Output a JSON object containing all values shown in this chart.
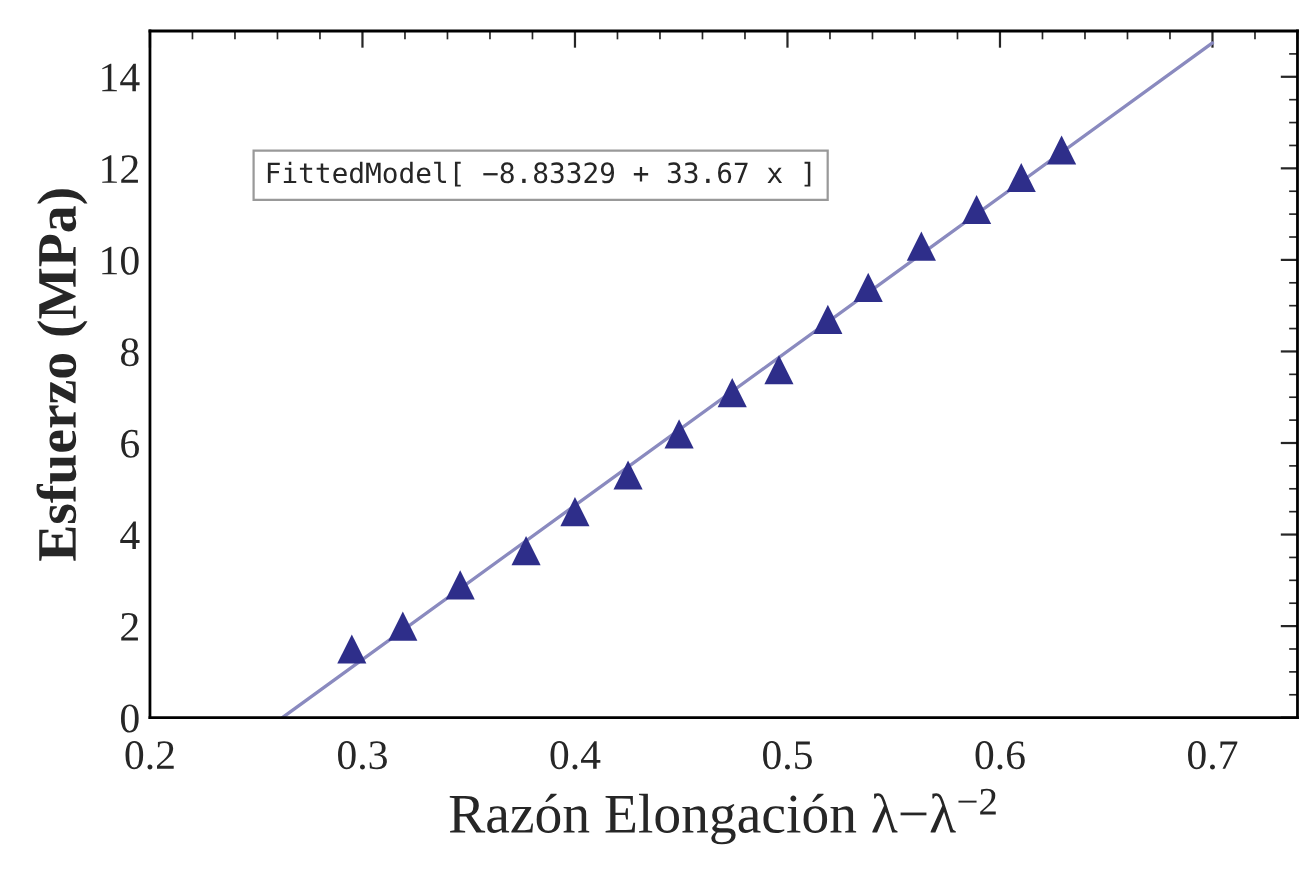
{
  "chart_data": {
    "type": "scatter",
    "xlabel": "Razón Elongación λ−λ$^{−2}$",
    "ylabel": "Esfuerzo (MPa)",
    "annotations": [
      "FittedModel[ −8.83329 + 33.67 x ]"
    ],
    "series": [
      {
        "color": "#2e2e8a",
        "marker": "triangle",
        "x": [
          0.295,
          0.319,
          0.346,
          0.377,
          0.4,
          0.425,
          0.449,
          0.474,
          0.496,
          0.519,
          0.538,
          0.563,
          0.589,
          0.61,
          0.629
        ],
        "values": [
          1.5,
          2.0,
          2.9,
          3.65,
          4.5,
          5.3,
          6.2,
          7.1,
          7.6,
          8.7,
          9.4,
          10.3,
          11.1,
          11.8,
          12.4
        ]
      },
      {
        "type": "line",
        "color": "#8a8abf",
        "marker": "none",
        "line_style": "solid",
        "x": [
          0.2623,
          0.7
        ],
        "values": [
          0,
          14.74
        ]
      }
    ],
    "xlim": [
      0.2,
      0.74
    ],
    "ylim": [
      0,
      15
    ],
    "xticks": [
      0.2,
      0.3,
      0.4,
      0.5,
      0.6,
      0.7
    ],
    "yticks": [
      0,
      2,
      4,
      6,
      8,
      10,
      12,
      14
    ],
    "grid": false
  }
}
